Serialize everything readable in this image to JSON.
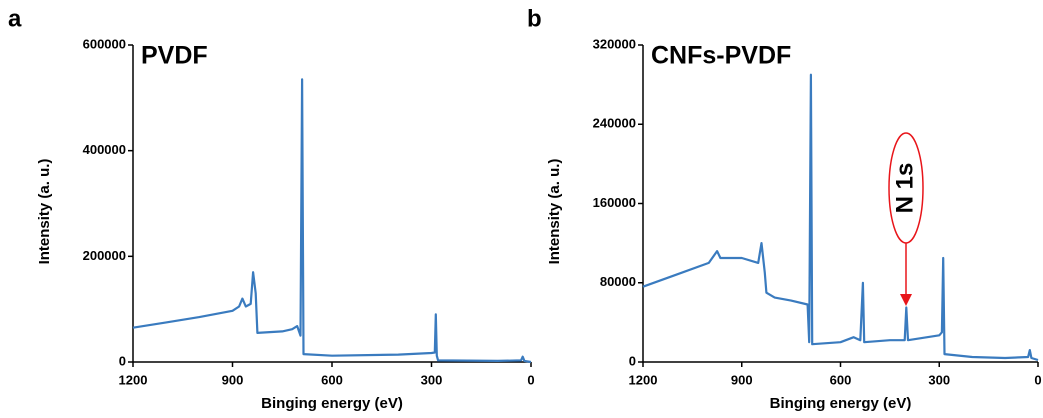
{
  "chart_data": [
    {
      "type": "line",
      "panel_label": "a",
      "xlabel": "Binging energy (eV)",
      "ylabel": "Intensity (a. u.)",
      "xlim": [
        1200,
        0
      ],
      "xticks": [
        1200,
        900,
        600,
        300,
        0
      ],
      "ylim": [
        0,
        600000
      ],
      "yticks": [
        0,
        200000,
        400000,
        600000
      ],
      "x": [
        1200,
        1100,
        1000,
        900,
        880,
        870,
        860,
        845,
        838,
        830,
        825,
        750,
        720,
        705,
        695,
        690,
        686,
        600,
        400,
        300,
        290,
        287,
        284,
        280,
        100,
        30,
        25,
        20,
        0
      ],
      "series": [
        {
          "name": "PVDF",
          "color": "#3a7bbf",
          "values": [
            65000,
            75000,
            85000,
            97000,
            105000,
            120000,
            105000,
            110000,
            170000,
            130000,
            55000,
            58000,
            62000,
            68000,
            50000,
            535000,
            15000,
            12000,
            14000,
            17000,
            18000,
            90000,
            12000,
            3000,
            2000,
            3000,
            10000,
            2000,
            0
          ]
        }
      ]
    },
    {
      "type": "line",
      "panel_label": "b",
      "xlabel": "Binging energy (eV)",
      "ylabel": "Intensity (a. u.)",
      "xlim": [
        1200,
        0
      ],
      "xticks": [
        1200,
        900,
        600,
        300,
        0
      ],
      "ylim": [
        0,
        320000
      ],
      "yticks": [
        0,
        80000,
        160000,
        240000,
        320000
      ],
      "x": [
        1200,
        1100,
        1000,
        975,
        965,
        900,
        850,
        840,
        830,
        825,
        800,
        750,
        700,
        695,
        690,
        686,
        600,
        560,
        540,
        532,
        528,
        450,
        405,
        400,
        395,
        300,
        292,
        288,
        284,
        200,
        100,
        30,
        25,
        20,
        0
      ],
      "series": [
        {
          "name": "CNFs-PVDF",
          "color": "#3a7bbf",
          "values": [
            76000,
            88000,
            100000,
            112000,
            105000,
            105000,
            100000,
            120000,
            90000,
            70000,
            65000,
            62000,
            58000,
            20000,
            290000,
            18000,
            20000,
            25000,
            22000,
            80000,
            20000,
            22000,
            22000,
            55000,
            22000,
            27000,
            30000,
            105000,
            8000,
            5000,
            4000,
            5000,
            12000,
            4000,
            2000
          ]
        }
      ],
      "annotations": [
        {
          "text": "N 1s"
        }
      ]
    }
  ]
}
